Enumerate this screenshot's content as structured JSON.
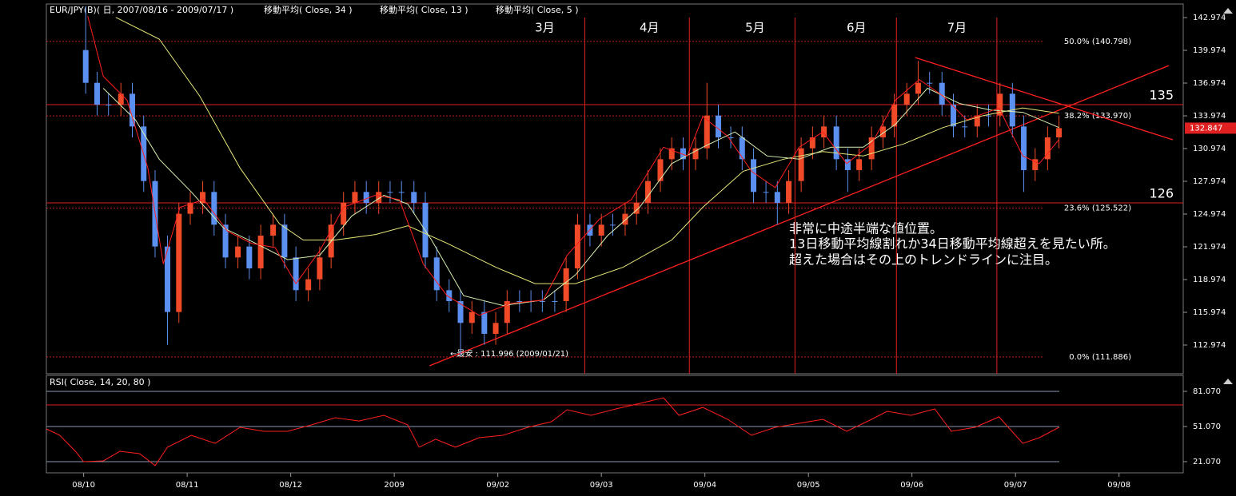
{
  "chart_data": [
    {
      "type": "candlestick",
      "title": "EUR/JPY(B)( 日, 2007/08/16 - 2009/07/17 )",
      "up_color": "#f04a28",
      "down_color": "#5b8ff0",
      "xlim": [
        -0.36,
        10.62
      ],
      "ylim": [
        110.34,
        144.22
      ],
      "yticks": [
        142.974,
        139.974,
        136.974,
        133.974,
        130.974,
        127.974,
        124.974,
        121.974,
        118.974,
        115.974,
        112.974
      ],
      "xticks": [
        {
          "value": 0,
          "label": "08/10"
        },
        {
          "value": 1,
          "label": "08/11"
        },
        {
          "value": 2,
          "label": "08/12"
        },
        {
          "value": 3,
          "label": "2009"
        },
        {
          "value": 4,
          "label": "09/02"
        },
        {
          "value": 5,
          "label": "09/03"
        },
        {
          "value": 6,
          "label": "09/04"
        },
        {
          "value": 7,
          "label": "09/05"
        },
        {
          "value": 8,
          "label": "09/06"
        },
        {
          "value": 9,
          "label": "09/07"
        },
        {
          "value": 10,
          "label": "09/08"
        }
      ],
      "x": [
        0.02,
        0.13,
        0.24,
        0.36,
        0.47,
        0.58,
        0.69,
        0.81,
        0.92,
        1.03,
        1.15,
        1.26,
        1.37,
        1.49,
        1.6,
        1.71,
        1.83,
        1.94,
        2.05,
        2.17,
        2.28,
        2.39,
        2.51,
        2.62,
        2.73,
        2.85,
        2.96,
        3.07,
        3.19,
        3.3,
        3.41,
        3.53,
        3.64,
        3.75,
        3.87,
        3.98,
        4.09,
        4.21,
        4.32,
        4.43,
        4.55,
        4.66,
        4.77,
        4.89,
        5.0,
        5.11,
        5.23,
        5.34,
        5.45,
        5.57,
        5.68,
        5.79,
        5.91,
        6.02,
        6.13,
        6.25,
        6.36,
        6.47,
        6.59,
        6.7,
        6.81,
        6.93,
        7.04,
        7.15,
        7.27,
        7.38,
        7.49,
        7.61,
        7.72,
        7.83,
        7.95,
        8.06,
        8.17,
        8.29,
        8.4,
        8.51,
        8.63,
        8.74,
        8.85,
        8.97,
        9.08,
        9.19,
        9.31,
        9.42
      ],
      "open": [
        140,
        137,
        135,
        135,
        136,
        133,
        128,
        122,
        116,
        125,
        126,
        127,
        124,
        121,
        122,
        120,
        123,
        124,
        121,
        118,
        119,
        121,
        124,
        126,
        127,
        126,
        127,
        127,
        127,
        126,
        121,
        118,
        117,
        115,
        116,
        114,
        115,
        117,
        117,
        117,
        117,
        117,
        120,
        124,
        123,
        124,
        124,
        125,
        126,
        128,
        130,
        131,
        130,
        131,
        134,
        132,
        132,
        130,
        127,
        127,
        126,
        128,
        131,
        132,
        133,
        130,
        129,
        130,
        132,
        133,
        135,
        136,
        137,
        137,
        135,
        133,
        133,
        134,
        134,
        136,
        133,
        129,
        130,
        132
      ],
      "high": [
        144,
        138,
        136,
        137,
        137,
        134,
        129,
        123,
        126,
        127,
        128,
        128,
        125,
        123,
        123,
        124,
        125,
        125,
        122,
        120,
        122,
        125,
        127,
        128,
        128,
        128,
        128,
        128,
        128,
        127,
        122,
        119,
        118,
        117,
        117,
        116,
        118,
        118,
        118,
        118,
        118,
        121,
        125,
        125,
        125,
        125,
        126,
        127,
        129,
        131,
        132,
        132,
        132,
        137,
        135,
        133,
        133,
        131,
        128,
        128,
        129,
        132,
        133,
        134,
        134,
        131,
        131,
        133,
        134,
        136,
        137,
        139,
        138,
        138,
        136,
        134,
        135,
        135,
        137,
        137,
        134,
        131,
        133,
        134
      ],
      "low": [
        136,
        134,
        134,
        134,
        132,
        127,
        121,
        113,
        115,
        124,
        125,
        123,
        120,
        120,
        119,
        119,
        122,
        120,
        117,
        117,
        118,
        120,
        123,
        125,
        125,
        125,
        126,
        126,
        125,
        120,
        117,
        116,
        112,
        114,
        113,
        113,
        114,
        116,
        116,
        116,
        116,
        116,
        119,
        122,
        122,
        123,
        123,
        124,
        125,
        127,
        129,
        129,
        129,
        130,
        131,
        131,
        129,
        126,
        126,
        124,
        125,
        127,
        130,
        131,
        129,
        127,
        128,
        129,
        131,
        132,
        134,
        135,
        136,
        134,
        132,
        132,
        132,
        133,
        133,
        132,
        127,
        128,
        129,
        131
      ],
      "close": [
        137,
        135,
        135,
        136,
        133,
        128,
        122,
        116,
        125,
        126,
        127,
        124,
        121,
        122,
        120,
        123,
        124,
        121,
        118,
        119,
        121,
        124,
        126,
        127,
        126,
        127,
        127,
        127,
        126,
        121,
        118,
        117,
        115,
        116,
        114,
        115,
        117,
        117,
        117,
        117,
        117,
        120,
        124,
        123,
        124,
        124,
        125,
        126,
        128,
        130,
        131,
        130,
        131,
        134,
        132,
        132,
        130,
        127,
        127,
        126,
        128,
        131,
        132,
        133,
        130,
        129,
        130,
        132,
        133,
        135,
        136,
        137,
        137,
        135,
        133,
        133,
        134,
        134,
        136,
        133,
        129,
        130,
        132,
        132.85
      ],
      "series": [
        {
          "name": "移動平均( Close, 34 )",
          "color": "#e8e87a",
          "x": [
            0.31,
            0.73,
            1.12,
            1.51,
            1.89,
            2.12,
            2.43,
            2.82,
            3.13,
            3.51,
            3.98,
            4.36,
            4.75,
            5.21,
            5.68,
            5.98,
            6.37,
            6.76,
            7.14,
            7.53,
            7.92,
            8.3,
            8.69,
            9.07,
            9.42
          ],
          "values": [
            143,
            141,
            135.8,
            129.2,
            124.1,
            122.6,
            122.6,
            123.1,
            123.9,
            122.3,
            120.1,
            118.6,
            118.6,
            120.1,
            122.6,
            125.6,
            128.9,
            130,
            130.7,
            130.3,
            131.4,
            132.9,
            134,
            134.7,
            134.2
          ]
        },
        {
          "name": "移動平均( Close, 13 )",
          "color": "#d8f0b0",
          "x": [
            0.19,
            0.5,
            0.73,
            1.04,
            1.35,
            1.66,
            1.97,
            2.28,
            2.59,
            2.9,
            3.13,
            3.36,
            3.67,
            4.05,
            4.44,
            4.75,
            5.06,
            5.37,
            5.68,
            5.98,
            6.29,
            6.6,
            6.91,
            7.22,
            7.53,
            7.84,
            8.15,
            8.46,
            8.76,
            9.07,
            9.42
          ],
          "values": [
            136.5,
            133.6,
            130,
            127,
            123.7,
            122.3,
            120.8,
            121.2,
            124.8,
            126.7,
            125.9,
            122.6,
            117.5,
            116.6,
            117.1,
            119.4,
            123,
            125.6,
            129.6,
            131.1,
            132.5,
            130.3,
            130,
            131.1,
            131.1,
            133.2,
            136.5,
            135.1,
            134.5,
            134.3,
            132.9
          ]
        },
        {
          "name": "移動平均( Close, 5 )",
          "color": "#ff2020",
          "x": [
            0.04,
            0.19,
            0.42,
            0.62,
            0.77,
            0.93,
            1.16,
            1.39,
            1.62,
            1.85,
            2.05,
            2.28,
            2.51,
            2.82,
            3.05,
            3.28,
            3.51,
            3.82,
            4.13,
            4.44,
            4.67,
            4.98,
            5.29,
            5.6,
            5.83,
            5.98,
            6.22,
            6.45,
            6.68,
            6.91,
            7.14,
            7.37,
            7.61,
            7.84,
            8.07,
            8.3,
            8.53,
            8.84,
            9.07,
            9.23,
            9.42
          ],
          "values": [
            143.1,
            137.6,
            135.4,
            129.2,
            120.4,
            125.6,
            126.3,
            123.4,
            122.3,
            121.9,
            118.6,
            121.6,
            125.6,
            126.7,
            126.3,
            120.4,
            117.5,
            115.7,
            116.8,
            117.1,
            121.2,
            124.5,
            126.3,
            131.1,
            130.3,
            133.9,
            132.1,
            128.9,
            127.4,
            131.1,
            132.5,
            129.6,
            131.4,
            135.4,
            137.3,
            135.8,
            133.6,
            134.7,
            130.3,
            129.6,
            131.8
          ]
        }
      ],
      "month_lines": [
        {
          "x": 4.84,
          "label": "3月"
        },
        {
          "x": 5.85,
          "label": "4月"
        },
        {
          "x": 6.87,
          "label": "5月"
        },
        {
          "x": 7.85,
          "label": "6月"
        },
        {
          "x": 8.82,
          "label": "7月"
        }
      ],
      "levels": [
        {
          "value": 135,
          "label": "135"
        },
        {
          "value": 126,
          "label": "126"
        }
      ],
      "fib": [
        {
          "value": 140.798,
          "label": "50.0% (140.798)"
        },
        {
          "value": 133.97,
          "label": "38.2% (133.970)"
        },
        {
          "value": 125.522,
          "label": "23.6% (125.522)"
        },
        {
          "value": 111.886,
          "label": "0.0% (111.886)"
        }
      ],
      "trendlines": [
        {
          "x": [
            3.34,
            10.48
          ],
          "y": [
            111.07,
            138.58
          ]
        },
        {
          "x": [
            8.03,
            10.52
          ],
          "y": [
            139.32,
            131.78
          ]
        }
      ],
      "low_note": "←最安 : 111.996 (2009/01/21)",
      "note": [
        "非常に中途半端な値位置。",
        "13日移動平均線割れか34日移動平均線超えを見たい所。",
        "超えた場合はその上のトレンドラインに注目。"
      ],
      "last_price": 132.847
    },
    {
      "type": "line",
      "title": "RSI( Close, 14, 20, 80 )",
      "color": "#ff2020",
      "xlim": [
        -0.36,
        10.62
      ],
      "ylim": [
        11.52,
        94.71
      ],
      "yticks": [
        {
          "value": 81.07,
          "label": "81.070"
        },
        {
          "value": 51.07,
          "label": "51.070"
        },
        {
          "value": 21.07,
          "label": "21.070"
        }
      ],
      "levels": [
        69.5
      ],
      "x": [
        -0.36,
        -0.23,
        -0.08,
        0,
        0.19,
        0.35,
        0.54,
        0.69,
        0.81,
        1.04,
        1.27,
        1.51,
        1.74,
        1.97,
        2.2,
        2.43,
        2.66,
        2.9,
        3.13,
        3.24,
        3.4,
        3.59,
        3.82,
        4.05,
        4.29,
        4.52,
        4.67,
        4.9,
        5.14,
        5.37,
        5.6,
        5.75,
        5.98,
        6.22,
        6.45,
        6.68,
        6.91,
        7.14,
        7.37,
        7.61,
        7.76,
        7.99,
        8.22,
        8.38,
        8.61,
        8.84,
        9.07,
        9.23,
        9.42
      ],
      "values": [
        49.0,
        43.6,
        29.9,
        21.1,
        21.7,
        29.9,
        27.9,
        17.7,
        33.4,
        43.6,
        36.7,
        50.4,
        47,
        47,
        52.4,
        58.6,
        55.8,
        60.6,
        52.4,
        33.4,
        40.2,
        33.4,
        41.5,
        43.6,
        50.4,
        55.2,
        65.4,
        60.6,
        66.1,
        70.8,
        75.6,
        60.6,
        67.4,
        57.2,
        43.6,
        50.4,
        53.8,
        57.2,
        47,
        57.2,
        64,
        60.6,
        66.1,
        47,
        50.4,
        59.3,
        36.7,
        41.5,
        50.4
      ]
    }
  ]
}
